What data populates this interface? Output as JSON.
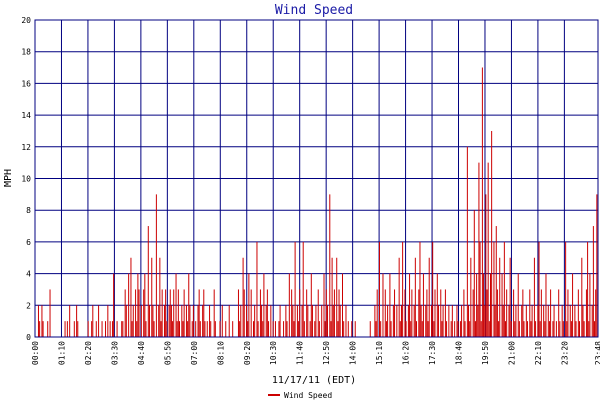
{
  "chart_data": {
    "type": "bar",
    "title": "Wind Speed",
    "xlabel": "11/17/11 (EDT)",
    "ylabel": "MPH",
    "ylim": [
      0,
      20
    ],
    "yticks": [
      0,
      2,
      4,
      6,
      8,
      10,
      12,
      14,
      16,
      18,
      20
    ],
    "xticks": [
      "00:00",
      "01:10",
      "02:20",
      "03:30",
      "04:40",
      "05:50",
      "07:00",
      "08:10",
      "09:20",
      "10:30",
      "11:40",
      "12:50",
      "14:00",
      "15:10",
      "16:20",
      "17:30",
      "18:40",
      "19:50",
      "21:00",
      "22:10",
      "23:20",
      "23:48"
    ],
    "grid": true,
    "legend_position": "bottom-left",
    "colors": {
      "series": "#cc0000",
      "grid": "#000080",
      "frame": "#000080",
      "title": "#1a1aa6"
    },
    "series": [
      {
        "name": "Wind Speed",
        "x_start": "00:00",
        "x_end": "23:48",
        "values": [
          0,
          0,
          0,
          2,
          1,
          0,
          2,
          1,
          0,
          0,
          0,
          1,
          0,
          3,
          0,
          0,
          0,
          0,
          0,
          0,
          0,
          0,
          0,
          0,
          0,
          0,
          1,
          0,
          1,
          0,
          2,
          0,
          0,
          0,
          1,
          0,
          2,
          1,
          0,
          0,
          0,
          0,
          0,
          0,
          0,
          0,
          1,
          0,
          0,
          1,
          2,
          0,
          0,
          1,
          0,
          2,
          0,
          0,
          1,
          0,
          0,
          1,
          0,
          2,
          0,
          1,
          0,
          1,
          4,
          0,
          0,
          1,
          0,
          0,
          0,
          1,
          1,
          0,
          3,
          2,
          0,
          4,
          0,
          5,
          1,
          2,
          0,
          3,
          1,
          4,
          3,
          0,
          2,
          0,
          3,
          4,
          1,
          0,
          7,
          2,
          0,
          5,
          2,
          1,
          0,
          9,
          0,
          2,
          5,
          1,
          3,
          0,
          2,
          3,
          1,
          0,
          2,
          3,
          2,
          1,
          3,
          0,
          4,
          1,
          3,
          1,
          0,
          2,
          1,
          3,
          0,
          2,
          1,
          4,
          2,
          0,
          1,
          2,
          0,
          1,
          0,
          2,
          3,
          1,
          0,
          2,
          3,
          1,
          0,
          1,
          0,
          2,
          1,
          0,
          0,
          3,
          1,
          0,
          0,
          0,
          1,
          0,
          2,
          0,
          0,
          1,
          0,
          0,
          2,
          0,
          0,
          1,
          0,
          0,
          0,
          0,
          3,
          1,
          2,
          0,
          5,
          3,
          0,
          2,
          1,
          4,
          0,
          3,
          0,
          1,
          2,
          0,
          6,
          1,
          0,
          3,
          2,
          1,
          4,
          0,
          2,
          3,
          1,
          0,
          2,
          0,
          1,
          0,
          1,
          0,
          0,
          1,
          2,
          0,
          0,
          1,
          0,
          2,
          1,
          0,
          4,
          0,
          3,
          2,
          1,
          6,
          0,
          2,
          1,
          3,
          0,
          2,
          6,
          1,
          0,
          3,
          2,
          0,
          1,
          4,
          2,
          0,
          1,
          2,
          0,
          3,
          1,
          0,
          2,
          0,
          4,
          1,
          3,
          2,
          0,
          9,
          1,
          5,
          2,
          3,
          0,
          5,
          1,
          3,
          2,
          0,
          4,
          1,
          0,
          2,
          0,
          1,
          0,
          0,
          1,
          0,
          0,
          1,
          0,
          0,
          0,
          0,
          0,
          0,
          0,
          0,
          0,
          0,
          0,
          0,
          1,
          0,
          0,
          0,
          2,
          1,
          3,
          0,
          6,
          1,
          0,
          4,
          0,
          3,
          1,
          2,
          0,
          4,
          1,
          0,
          2,
          3,
          0,
          2,
          0,
          5,
          1,
          2,
          6,
          0,
          3,
          1,
          0,
          2,
          4,
          1,
          3,
          0,
          2,
          5,
          1,
          0,
          3,
          6,
          2,
          1,
          4,
          0,
          2,
          3,
          1,
          5,
          0,
          2,
          6,
          1,
          3,
          0,
          4,
          2,
          0,
          3,
          1,
          2,
          0,
          3,
          1,
          0,
          2,
          0,
          1,
          2,
          0,
          1,
          0,
          2,
          1,
          0,
          1,
          2,
          0,
          3,
          1,
          0,
          12,
          2,
          1,
          5,
          0,
          3,
          8,
          1,
          4,
          2,
          11,
          6,
          1,
          17,
          4,
          2,
          9,
          3,
          11,
          1,
          4,
          13,
          0,
          6,
          2,
          7,
          3,
          1,
          5,
          0,
          4,
          2,
          6,
          1,
          3,
          0,
          2,
          5,
          1,
          0,
          3,
          1,
          2,
          0,
          4,
          1,
          0,
          2,
          3,
          1,
          0,
          2,
          1,
          0,
          3,
          1,
          2,
          0,
          5,
          1,
          0,
          2,
          6,
          1,
          3,
          0,
          2,
          1,
          4,
          0,
          2,
          1,
          3,
          0,
          1,
          2,
          0,
          1,
          0,
          3,
          1,
          0,
          2,
          1,
          0,
          6,
          1,
          3,
          0,
          2,
          1,
          4,
          0,
          2,
          1,
          0,
          3,
          1,
          0,
          5,
          2,
          1,
          0,
          3,
          6,
          1,
          4,
          0,
          2,
          7,
          1,
          3,
          9,
          6
        ]
      }
    ]
  }
}
